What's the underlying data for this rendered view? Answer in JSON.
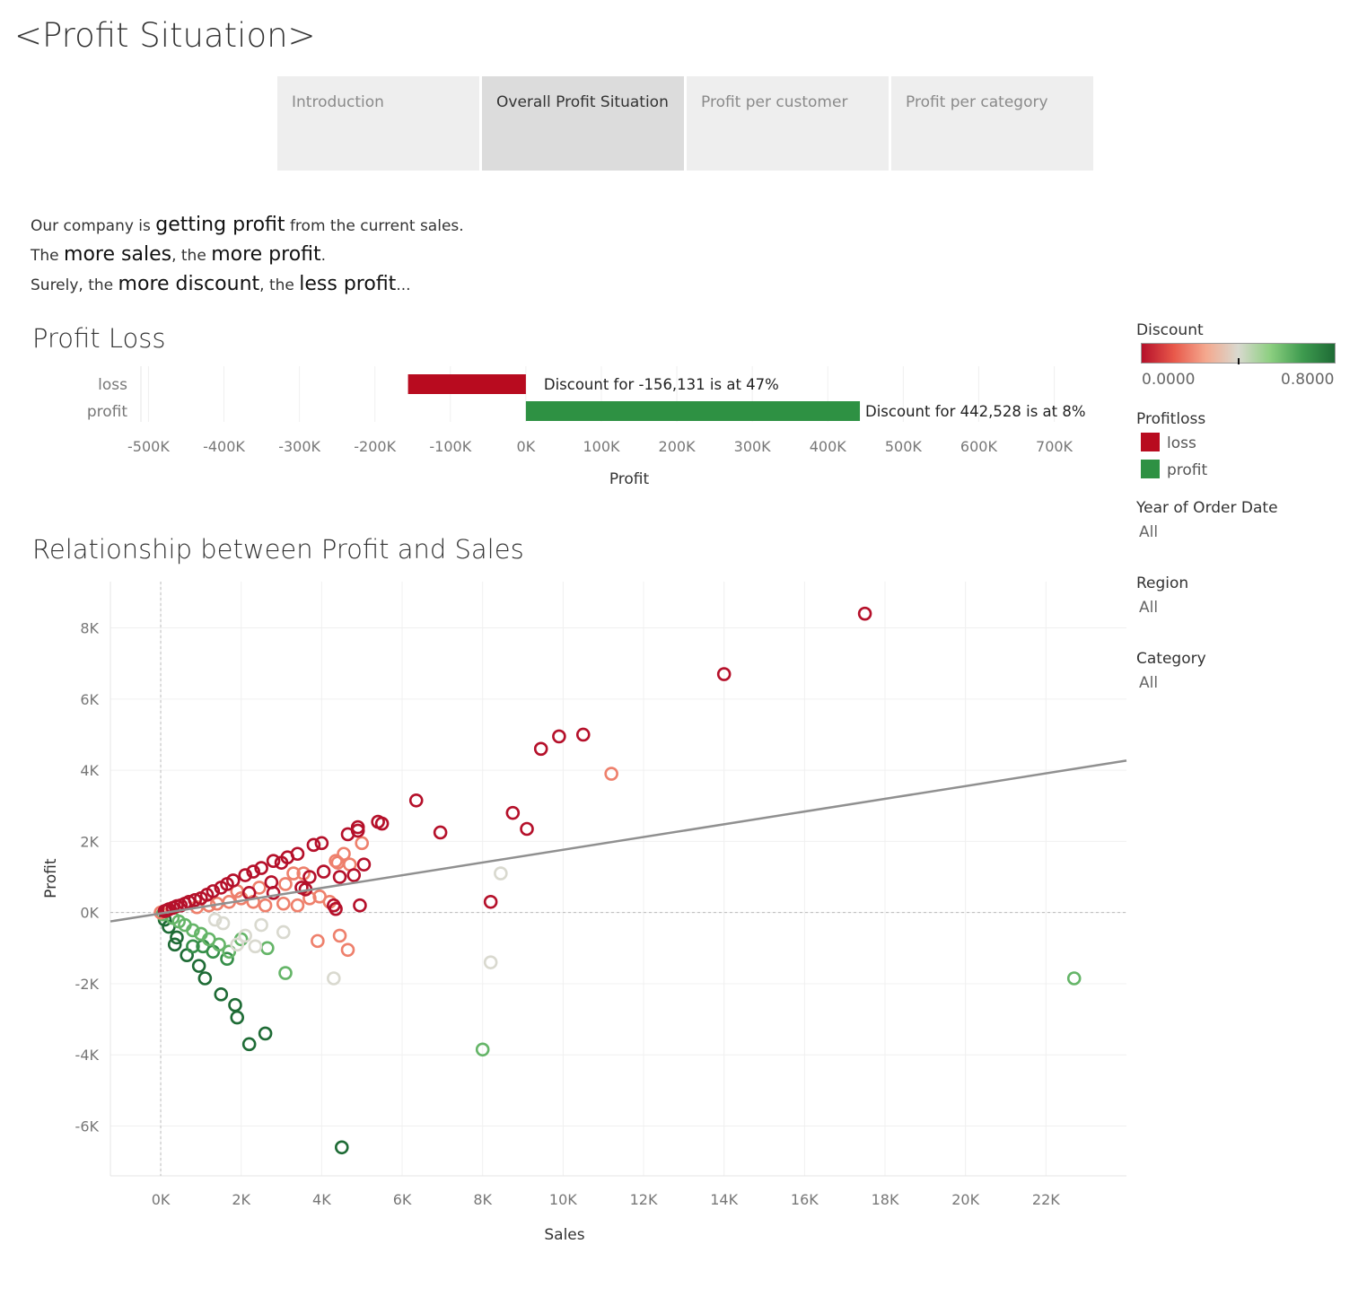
{
  "page": {
    "title": "<Profit Situation>"
  },
  "tabs": [
    {
      "label": "Introduction",
      "active": false
    },
    {
      "label": "Overall Profit Situation",
      "active": true
    },
    {
      "label": "Profit per customer",
      "active": false
    },
    {
      "label": "Profit per category",
      "active": false
    }
  ],
  "intro": {
    "line1": {
      "pre": "Our company is ",
      "em": "getting profit",
      "post": " from the current sales."
    },
    "line2": {
      "pre": "The ",
      "em1": "more sales",
      "mid": ", the ",
      "em2": "more profit",
      "post": "."
    },
    "line3": {
      "pre": "Surely, the ",
      "em1": "more discount",
      "mid": ", the ",
      "em2": "less profit",
      "post": "..."
    }
  },
  "legends": {
    "discount": {
      "title": "Discount",
      "min_label": "0.0000",
      "max_label": "0.8000",
      "colors": [
        "#b5102a",
        "#e8584a",
        "#f4a88e",
        "#d9d9cf",
        "#8ccf80",
        "#3e9b4f",
        "#1e6b35"
      ]
    },
    "profitloss": {
      "title": "Profitloss",
      "items": [
        {
          "label": "loss",
          "color": "#b80b1f"
        },
        {
          "label": "profit",
          "color": "#2e9143"
        }
      ]
    },
    "filters": [
      {
        "title": "Year of Order Date",
        "value": "All"
      },
      {
        "title": "Region",
        "value": "All"
      },
      {
        "title": "Category",
        "value": "All"
      }
    ]
  },
  "chart_data": [
    {
      "type": "bar",
      "orientation": "horizontal",
      "title": "Profit Loss",
      "xlabel": "Profit",
      "ylabel": "",
      "categories": [
        "loss",
        "profit"
      ],
      "values": [
        -156131,
        442528
      ],
      "colors": [
        "#b80b1f",
        "#2e9143"
      ],
      "annotations": [
        "Discount for -156,131 is at 47%",
        "Discount for 442,528 is at 8%"
      ],
      "xlim": [
        -510000,
        760000
      ],
      "xticks": [
        -500000,
        -400000,
        -300000,
        -200000,
        -100000,
        0,
        100000,
        200000,
        300000,
        400000,
        500000,
        600000,
        700000
      ],
      "xtick_labels": [
        "-500K",
        "-400K",
        "-300K",
        "-200K",
        "-100K",
        "0K",
        "100K",
        "200K",
        "300K",
        "400K",
        "500K",
        "600K",
        "700K"
      ],
      "grid": true
    },
    {
      "type": "scatter",
      "title": "Relationship between Profit and Sales",
      "xlabel": "Sales",
      "ylabel": "Profit",
      "xlim": [
        -1250,
        24000
      ],
      "ylim": [
        -7400,
        9300
      ],
      "xticks": [
        0,
        2000,
        4000,
        6000,
        8000,
        10000,
        12000,
        14000,
        16000,
        18000,
        20000,
        22000
      ],
      "xtick_labels": [
        "0K",
        "2K",
        "4K",
        "6K",
        "8K",
        "10K",
        "12K",
        "14K",
        "16K",
        "18K",
        "20K",
        "22K"
      ],
      "yticks": [
        -6000,
        -4000,
        -2000,
        0,
        2000,
        4000,
        6000,
        8000
      ],
      "ytick_labels": [
        "-6K",
        "-4K",
        "-2K",
        "0K",
        "2K",
        "4K",
        "6K",
        "8K"
      ],
      "trend_line": {
        "x": [
          -1250,
          24000
        ],
        "y": [
          -250,
          4270
        ],
        "color": "#909090"
      },
      "grid": true,
      "points": [
        {
          "x": 17500,
          "y": 8400,
          "d": 0.0
        },
        {
          "x": 14000,
          "y": 6700,
          "d": 0.0
        },
        {
          "x": 10500,
          "y": 5000,
          "d": 0.0
        },
        {
          "x": 9900,
          "y": 4950,
          "d": 0.0
        },
        {
          "x": 9450,
          "y": 4600,
          "d": 0.0
        },
        {
          "x": 11200,
          "y": 3900,
          "d": 0.2
        },
        {
          "x": 6350,
          "y": 3150,
          "d": 0.0
        },
        {
          "x": 8750,
          "y": 2800,
          "d": 0.0
        },
        {
          "x": 9100,
          "y": 2350,
          "d": 0.0
        },
        {
          "x": 6950,
          "y": 2250,
          "d": 0.0
        },
        {
          "x": 5400,
          "y": 2550,
          "d": 0.0
        },
        {
          "x": 5500,
          "y": 2500,
          "d": 0.0
        },
        {
          "x": 4900,
          "y": 2400,
          "d": 0.0
        },
        {
          "x": 4900,
          "y": 2300,
          "d": 0.0
        },
        {
          "x": 4650,
          "y": 2200,
          "d": 0.0
        },
        {
          "x": 5000,
          "y": 1950,
          "d": 0.2
        },
        {
          "x": 4000,
          "y": 1950,
          "d": 0.0
        },
        {
          "x": 3800,
          "y": 1900,
          "d": 0.0
        },
        {
          "x": 4550,
          "y": 1650,
          "d": 0.2
        },
        {
          "x": 3400,
          "y": 1650,
          "d": 0.0
        },
        {
          "x": 4350,
          "y": 1450,
          "d": 0.2
        },
        {
          "x": 4400,
          "y": 1400,
          "d": 0.2
        },
        {
          "x": 5050,
          "y": 1350,
          "d": 0.0
        },
        {
          "x": 4050,
          "y": 1150,
          "d": 0.0
        },
        {
          "x": 4700,
          "y": 1350,
          "d": 0.2
        },
        {
          "x": 3150,
          "y": 1550,
          "d": 0.0
        },
        {
          "x": 3000,
          "y": 1400,
          "d": 0.0
        },
        {
          "x": 2800,
          "y": 1450,
          "d": 0.0
        },
        {
          "x": 2500,
          "y": 1250,
          "d": 0.0
        },
        {
          "x": 2300,
          "y": 1150,
          "d": 0.0
        },
        {
          "x": 2100,
          "y": 1050,
          "d": 0.0
        },
        {
          "x": 3300,
          "y": 1100,
          "d": 0.2
        },
        {
          "x": 3550,
          "y": 1100,
          "d": 0.2
        },
        {
          "x": 3700,
          "y": 1000,
          "d": 0.0
        },
        {
          "x": 4450,
          "y": 1000,
          "d": 0.0
        },
        {
          "x": 3500,
          "y": 700,
          "d": 0.0
        },
        {
          "x": 3600,
          "y": 650,
          "d": 0.0
        },
        {
          "x": 3100,
          "y": 800,
          "d": 0.2
        },
        {
          "x": 2750,
          "y": 850,
          "d": 0.0
        },
        {
          "x": 2450,
          "y": 700,
          "d": 0.2
        },
        {
          "x": 2800,
          "y": 550,
          "d": 0.0
        },
        {
          "x": 2200,
          "y": 550,
          "d": 0.0
        },
        {
          "x": 1800,
          "y": 900,
          "d": 0.0
        },
        {
          "x": 1650,
          "y": 800,
          "d": 0.0
        },
        {
          "x": 1500,
          "y": 700,
          "d": 0.0
        },
        {
          "x": 1300,
          "y": 600,
          "d": 0.0
        },
        {
          "x": 1150,
          "y": 500,
          "d": 0.0
        },
        {
          "x": 1000,
          "y": 400,
          "d": 0.0
        },
        {
          "x": 850,
          "y": 350,
          "d": 0.0
        },
        {
          "x": 700,
          "y": 300,
          "d": 0.0
        },
        {
          "x": 600,
          "y": 250,
          "d": 0.0
        },
        {
          "x": 500,
          "y": 200,
          "d": 0.0
        },
        {
          "x": 400,
          "y": 180,
          "d": 0.0
        },
        {
          "x": 300,
          "y": 130,
          "d": 0.0
        },
        {
          "x": 200,
          "y": 90,
          "d": 0.0
        },
        {
          "x": 100,
          "y": 40,
          "d": 0.0
        },
        {
          "x": 1900,
          "y": 600,
          "d": 0.2
        },
        {
          "x": 2000,
          "y": 400,
          "d": 0.2
        },
        {
          "x": 1700,
          "y": 300,
          "d": 0.2
        },
        {
          "x": 1400,
          "y": 250,
          "d": 0.2
        },
        {
          "x": 1200,
          "y": 200,
          "d": 0.2
        },
        {
          "x": 900,
          "y": 150,
          "d": 0.2
        },
        {
          "x": 2300,
          "y": 300,
          "d": 0.2
        },
        {
          "x": 2600,
          "y": 200,
          "d": 0.2
        },
        {
          "x": 3050,
          "y": 250,
          "d": 0.2
        },
        {
          "x": 3400,
          "y": 200,
          "d": 0.2
        },
        {
          "x": 3700,
          "y": 400,
          "d": 0.2
        },
        {
          "x": 3950,
          "y": 450,
          "d": 0.2
        },
        {
          "x": 4200,
          "y": 300,
          "d": 0.2
        },
        {
          "x": 4800,
          "y": 1050,
          "d": 0.0
        },
        {
          "x": 4300,
          "y": 200,
          "d": 0.0
        },
        {
          "x": 4350,
          "y": 100,
          "d": 0.0
        },
        {
          "x": 4950,
          "y": 200,
          "d": 0.0
        },
        {
          "x": 8200,
          "y": 300,
          "d": 0.0
        },
        {
          "x": 8450,
          "y": 1100,
          "d": 0.4
        },
        {
          "x": 3900,
          "y": -800,
          "d": 0.2
        },
        {
          "x": 4450,
          "y": -650,
          "d": 0.2
        },
        {
          "x": 4650,
          "y": -1050,
          "d": 0.2
        },
        {
          "x": 8200,
          "y": -1400,
          "d": 0.4
        },
        {
          "x": 4300,
          "y": -1850,
          "d": 0.4
        },
        {
          "x": 3050,
          "y": -550,
          "d": 0.4
        },
        {
          "x": 2500,
          "y": -350,
          "d": 0.4
        },
        {
          "x": 2100,
          "y": -650,
          "d": 0.4
        },
        {
          "x": 1900,
          "y": -900,
          "d": 0.4
        },
        {
          "x": 2350,
          "y": -950,
          "d": 0.4
        },
        {
          "x": 1550,
          "y": -300,
          "d": 0.4
        },
        {
          "x": 1350,
          "y": -200,
          "d": 0.4
        },
        {
          "x": 2650,
          "y": -1000,
          "d": 0.6
        },
        {
          "x": 3100,
          "y": -1700,
          "d": 0.6
        },
        {
          "x": 8000,
          "y": -3850,
          "d": 0.6
        },
        {
          "x": 22700,
          "y": -1850,
          "d": 0.6
        },
        {
          "x": 1700,
          "y": -1100,
          "d": 0.6
        },
        {
          "x": 1450,
          "y": -900,
          "d": 0.6
        },
        {
          "x": 1200,
          "y": -750,
          "d": 0.6
        },
        {
          "x": 1000,
          "y": -600,
          "d": 0.6
        },
        {
          "x": 800,
          "y": -500,
          "d": 0.6
        },
        {
          "x": 600,
          "y": -350,
          "d": 0.6
        },
        {
          "x": 450,
          "y": -250,
          "d": 0.6
        },
        {
          "x": 300,
          "y": -150,
          "d": 0.6
        },
        {
          "x": 2000,
          "y": -750,
          "d": 0.6
        },
        {
          "x": 1650,
          "y": -1300,
          "d": 0.7
        },
        {
          "x": 1300,
          "y": -1100,
          "d": 0.7
        },
        {
          "x": 1050,
          "y": -950,
          "d": 0.7
        },
        {
          "x": 800,
          "y": -950,
          "d": 0.7
        },
        {
          "x": 650,
          "y": -1200,
          "d": 0.8
        },
        {
          "x": 950,
          "y": -1500,
          "d": 0.8
        },
        {
          "x": 1100,
          "y": -1850,
          "d": 0.8
        },
        {
          "x": 1500,
          "y": -2300,
          "d": 0.8
        },
        {
          "x": 1850,
          "y": -2600,
          "d": 0.8
        },
        {
          "x": 1900,
          "y": -2950,
          "d": 0.8
        },
        {
          "x": 2600,
          "y": -3400,
          "d": 0.8
        },
        {
          "x": 2200,
          "y": -3700,
          "d": 0.8
        },
        {
          "x": 4500,
          "y": -6600,
          "d": 0.8
        },
        {
          "x": 400,
          "y": -700,
          "d": 0.8
        },
        {
          "x": 350,
          "y": -900,
          "d": 0.8
        },
        {
          "x": 200,
          "y": -400,
          "d": 0.8
        },
        {
          "x": 100,
          "y": -200,
          "d": 0.8
        },
        {
          "x": 0,
          "y": 0,
          "d": 0.2
        },
        {
          "x": 50,
          "y": -50,
          "d": 0.6
        },
        {
          "x": 150,
          "y": 60,
          "d": 0.0
        }
      ]
    }
  ]
}
